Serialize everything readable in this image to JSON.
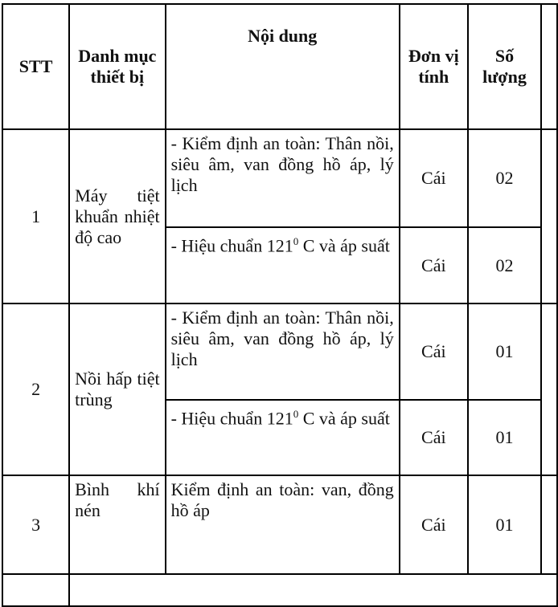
{
  "headers": {
    "stt": "STT",
    "category": "Danh mục thiết bị",
    "content": "Nội dung",
    "unit": "Đơn vị tính",
    "quantity": "Số lượng"
  },
  "rows": [
    {
      "stt": "1",
      "category": "Máy tiệt khuẩn nhiệt độ cao",
      "items": [
        {
          "content": "- Kiểm định an toàn: Thân nồi, siêu âm, van đồng hồ áp, lý lịch",
          "unit": "Cái",
          "quantity": "02"
        },
        {
          "content_pre": "- Hiệu chuẩn 121",
          "content_sup": "0",
          "content_post": " C và áp suất",
          "unit": "Cái",
          "quantity": "02"
        }
      ]
    },
    {
      "stt": "2",
      "category": "Nồi hấp tiệt trùng",
      "items": [
        {
          "content": "- Kiểm định an toàn: Thân nồi, siêu âm, van đồng hồ áp, lý lịch",
          "unit": "Cái",
          "quantity": "01"
        },
        {
          "content_pre": "- Hiệu chuẩn 121",
          "content_sup": "0",
          "content_post": " C và áp suất",
          "unit": "Cái",
          "quantity": "01"
        }
      ]
    },
    {
      "stt": "3",
      "category": "Bình khí nén",
      "items": [
        {
          "content": "Kiểm định an toàn: van, đồng hồ áp",
          "unit": "Cái",
          "quantity": "01"
        }
      ]
    }
  ]
}
